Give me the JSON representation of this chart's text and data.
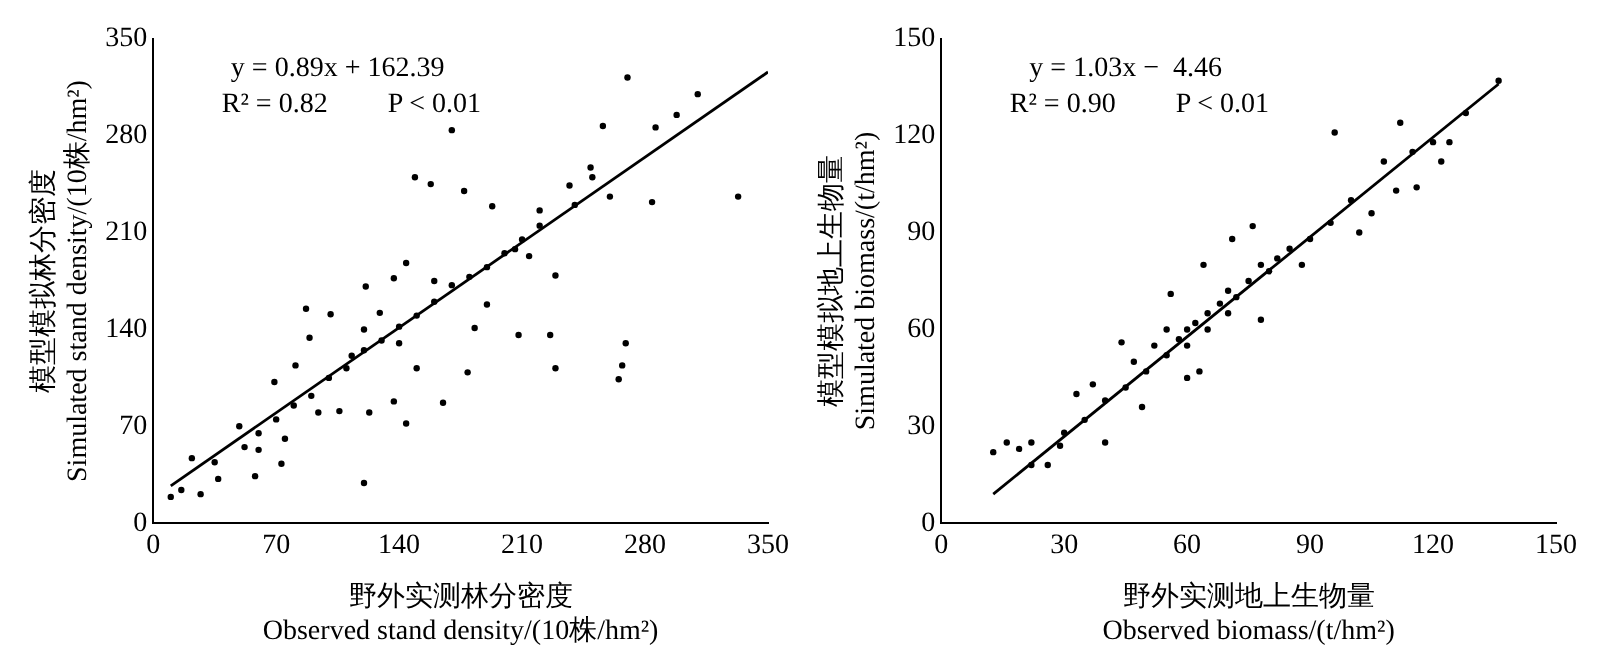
{
  "chart_data": [
    {
      "type": "scatter",
      "xlabel": "野外实测林分密度\nObserved stand density/(10株/hm²)",
      "ylabel": "模型模拟林分密度\nSimulated stand density/(10株/hm²)",
      "xlim": [
        0,
        350
      ],
      "ylim": [
        0,
        350
      ],
      "xticks": [
        0,
        70,
        140,
        210,
        280,
        350
      ],
      "yticks": [
        0,
        70,
        140,
        210,
        280,
        350
      ],
      "grid": false,
      "legend": false,
      "annotations": [
        "y = 0.89x + 162.39",
        "R² = 0.82",
        "P < 0.01"
      ],
      "series": [
        {
          "type": "scatter",
          "marker": "circle",
          "color": "#000000",
          "x": [
            10,
            16,
            22,
            27,
            35,
            37,
            49,
            52,
            58,
            60,
            69,
            73,
            75,
            81,
            87,
            89,
            94,
            101,
            106,
            113,
            120,
            121,
            123,
            129,
            137,
            137,
            144,
            144,
            150,
            149,
            158,
            165,
            170,
            177,
            179,
            183,
            190,
            193,
            206,
            208,
            214,
            220,
            229,
            229,
            226,
            237,
            249,
            256,
            260,
            265,
            267,
            269,
            270,
            284,
            286,
            298,
            310,
            333,
            60,
            80,
            100,
            110,
            120,
            130,
            140,
            150,
            160,
            170,
            180,
            190,
            200,
            210,
            220,
            240,
            250,
            90,
            70,
            120,
            140,
            160
          ],
          "values": [
            19,
            24,
            47,
            21,
            44,
            32,
            70,
            55,
            34,
            53,
            102,
            43,
            61,
            114,
            155,
            134,
            80,
            151,
            81,
            121,
            29,
            171,
            80,
            152,
            177,
            88,
            72,
            188,
            112,
            250,
            245,
            87,
            284,
            240,
            109,
            141,
            158,
            229,
            198,
            136,
            193,
            226,
            112,
            179,
            136,
            244,
            257,
            287,
            236,
            104,
            114,
            130,
            322,
            232,
            286,
            295,
            310,
            236,
            65,
            85,
            105,
            112,
            125,
            132,
            142,
            150,
            160,
            172,
            178,
            185,
            195,
            205,
            215,
            230,
            250,
            92,
            75,
            140,
            130,
            175
          ]
        },
        {
          "type": "line",
          "marker": "none",
          "color": "#000000",
          "x": [
            10,
            350
          ],
          "values": [
            27,
            326
          ]
        }
      ]
    },
    {
      "type": "scatter",
      "xlabel": "野外实测地上生物量\nObserved biomass/(t/hm²)",
      "ylabel": "模型模拟地上生物量\nSimulated biomass/(t/hm²)",
      "xlim": [
        0,
        150
      ],
      "ylim": [
        0,
        150
      ],
      "xticks": [
        0,
        30,
        60,
        90,
        120,
        150
      ],
      "yticks": [
        0,
        30,
        60,
        90,
        120,
        150
      ],
      "grid": false,
      "legend": false,
      "annotations": [
        "y = 1.03x −  4.46",
        "R² = 0.90",
        "P < 0.01"
      ],
      "series": [
        {
          "type": "scatter",
          "marker": "circle",
          "color": "#000000",
          "x": [
            12.7,
            16,
            19,
            22,
            22,
            26,
            29,
            33,
            37,
            40,
            44,
            47,
            49,
            56,
            60,
            63,
            64,
            71,
            76,
            78,
            88,
            96,
            102,
            105,
            112,
            111,
            116,
            122,
            124,
            128,
            136,
            30,
            35,
            40,
            45,
            50,
            52,
            55,
            58,
            60,
            62,
            65,
            68,
            70,
            72,
            75,
            78,
            80,
            82,
            85,
            90,
            95,
            100,
            108,
            115,
            120,
            55,
            60,
            65,
            70
          ],
          "values": [
            22,
            25,
            23,
            25,
            18,
            18,
            24,
            40,
            43,
            25,
            56,
            50,
            36,
            71,
            45,
            47,
            80,
            88,
            92,
            63,
            80,
            121,
            90,
            96,
            124,
            103,
            104,
            112,
            118,
            127,
            137,
            28,
            32,
            38,
            42,
            47,
            55,
            52,
            57,
            60,
            62,
            65,
            68,
            72,
            70,
            75,
            80,
            78,
            82,
            85,
            88,
            93,
            100,
            112,
            115,
            118,
            60,
            55,
            60,
            65
          ]
        },
        {
          "type": "line",
          "marker": "none",
          "color": "#000000",
          "x": [
            12.7,
            136
          ],
          "values": [
            9,
            136
          ]
        }
      ]
    }
  ]
}
